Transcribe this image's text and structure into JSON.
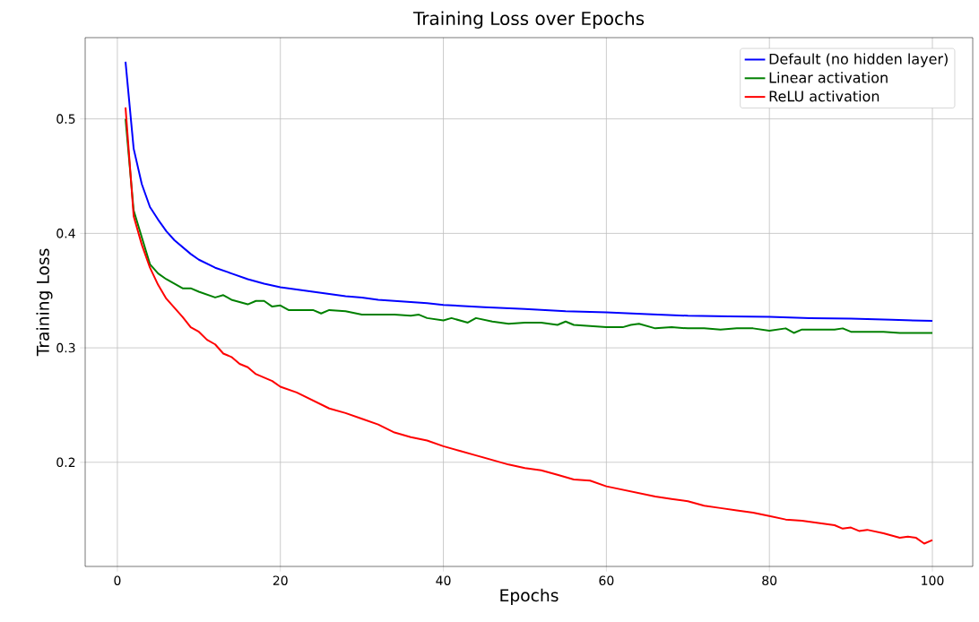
{
  "chart_data": {
    "type": "line",
    "title": "Training Loss over Epochs",
    "xlabel": "Epochs",
    "ylabel": "Training Loss",
    "xlim": [
      -3.95,
      104.95
    ],
    "ylim": [
      0.109,
      0.571
    ],
    "xticks": [
      0,
      20,
      40,
      60,
      80,
      100
    ],
    "yticks": [
      0.2,
      0.3,
      0.4,
      0.5
    ],
    "grid": true,
    "legend": "top right",
    "marker": "none",
    "line_style": "solid",
    "series": [
      {
        "name": "Default (no hidden layer)",
        "color": "#0000ff",
        "x": [
          1,
          2,
          3,
          4,
          5,
          6,
          7,
          8,
          9,
          10,
          12,
          14,
          16,
          18,
          20,
          22,
          24,
          26,
          28,
          30,
          32,
          34,
          36,
          38,
          40,
          45,
          50,
          55,
          60,
          65,
          70,
          75,
          80,
          85,
          90,
          95,
          100
        ],
        "values": [
          0.55,
          0.474,
          0.443,
          0.423,
          0.412,
          0.402,
          0.394,
          0.388,
          0.382,
          0.377,
          0.37,
          0.365,
          0.36,
          0.356,
          0.353,
          0.351,
          0.349,
          0.347,
          0.345,
          0.344,
          0.342,
          0.341,
          0.34,
          0.339,
          0.3375,
          0.3355,
          0.334,
          0.332,
          0.331,
          0.3295,
          0.328,
          0.3275,
          0.327,
          0.326,
          0.3255,
          0.3245,
          0.3235
        ]
      },
      {
        "name": "Linear activation",
        "color": "#008000",
        "x": [
          1,
          2,
          3,
          4,
          5,
          6,
          7,
          8,
          9,
          10,
          12,
          13,
          14,
          16,
          17,
          18,
          19,
          20,
          21,
          24,
          25,
          26,
          28,
          30,
          32,
          34,
          36,
          37,
          38,
          40,
          41,
          43,
          44,
          46,
          48,
          50,
          52,
          54,
          55,
          56,
          58,
          60,
          62,
          63,
          64,
          66,
          68,
          70,
          72,
          74,
          76,
          78,
          80,
          82,
          83,
          84,
          86,
          88,
          89,
          90,
          92,
          94,
          96,
          98,
          100
        ],
        "values": [
          0.5,
          0.42,
          null,
          0.373,
          0.365,
          0.36,
          0.356,
          0.352,
          0.352,
          0.349,
          0.344,
          0.346,
          0.342,
          0.338,
          0.341,
          0.341,
          0.336,
          0.337,
          0.333,
          0.333,
          0.33,
          0.333,
          0.332,
          0.329,
          0.329,
          0.329,
          0.328,
          0.329,
          0.326,
          0.324,
          0.326,
          0.322,
          0.326,
          0.323,
          0.321,
          0.322,
          0.322,
          0.32,
          0.323,
          0.32,
          0.319,
          0.318,
          0.318,
          0.32,
          0.321,
          0.317,
          0.318,
          0.317,
          0.317,
          0.316,
          0.317,
          0.317,
          0.315,
          0.317,
          0.313,
          0.316,
          0.316,
          0.316,
          0.317,
          0.314,
          0.314,
          0.314,
          0.313,
          0.313,
          0.313
        ]
      },
      {
        "name": "ReLU activation",
        "color": "#ff0000",
        "x": [
          1,
          2,
          3,
          4,
          5,
          6,
          7,
          8,
          9,
          10,
          11,
          12,
          13,
          14,
          15,
          16,
          17,
          18,
          19,
          20,
          22,
          24,
          26,
          28,
          30,
          32,
          34,
          36,
          38,
          40,
          42,
          44,
          46,
          48,
          50,
          52,
          54,
          56,
          58,
          60,
          62,
          64,
          66,
          68,
          70,
          72,
          74,
          76,
          78,
          80,
          82,
          84,
          86,
          88,
          89,
          90,
          91,
          92,
          94,
          96,
          97,
          98,
          99,
          100
        ],
        "values": [
          0.51,
          0.415,
          0.39,
          0.37,
          0.355,
          0.343,
          0.335,
          0.327,
          0.318,
          0.314,
          0.307,
          0.303,
          0.295,
          0.292,
          0.286,
          0.283,
          0.277,
          0.274,
          0.271,
          0.266,
          0.261,
          0.254,
          0.247,
          0.243,
          0.238,
          0.233,
          0.226,
          0.222,
          0.219,
          0.214,
          0.21,
          0.206,
          0.202,
          0.198,
          0.195,
          0.193,
          0.189,
          0.185,
          0.184,
          0.179,
          0.176,
          0.173,
          0.17,
          0.168,
          0.166,
          0.162,
          0.16,
          0.158,
          0.156,
          0.153,
          0.15,
          0.149,
          0.147,
          0.145,
          0.142,
          0.143,
          0.14,
          0.141,
          0.138,
          0.134,
          0.135,
          0.134,
          0.129,
          0.132
        ]
      }
    ]
  }
}
